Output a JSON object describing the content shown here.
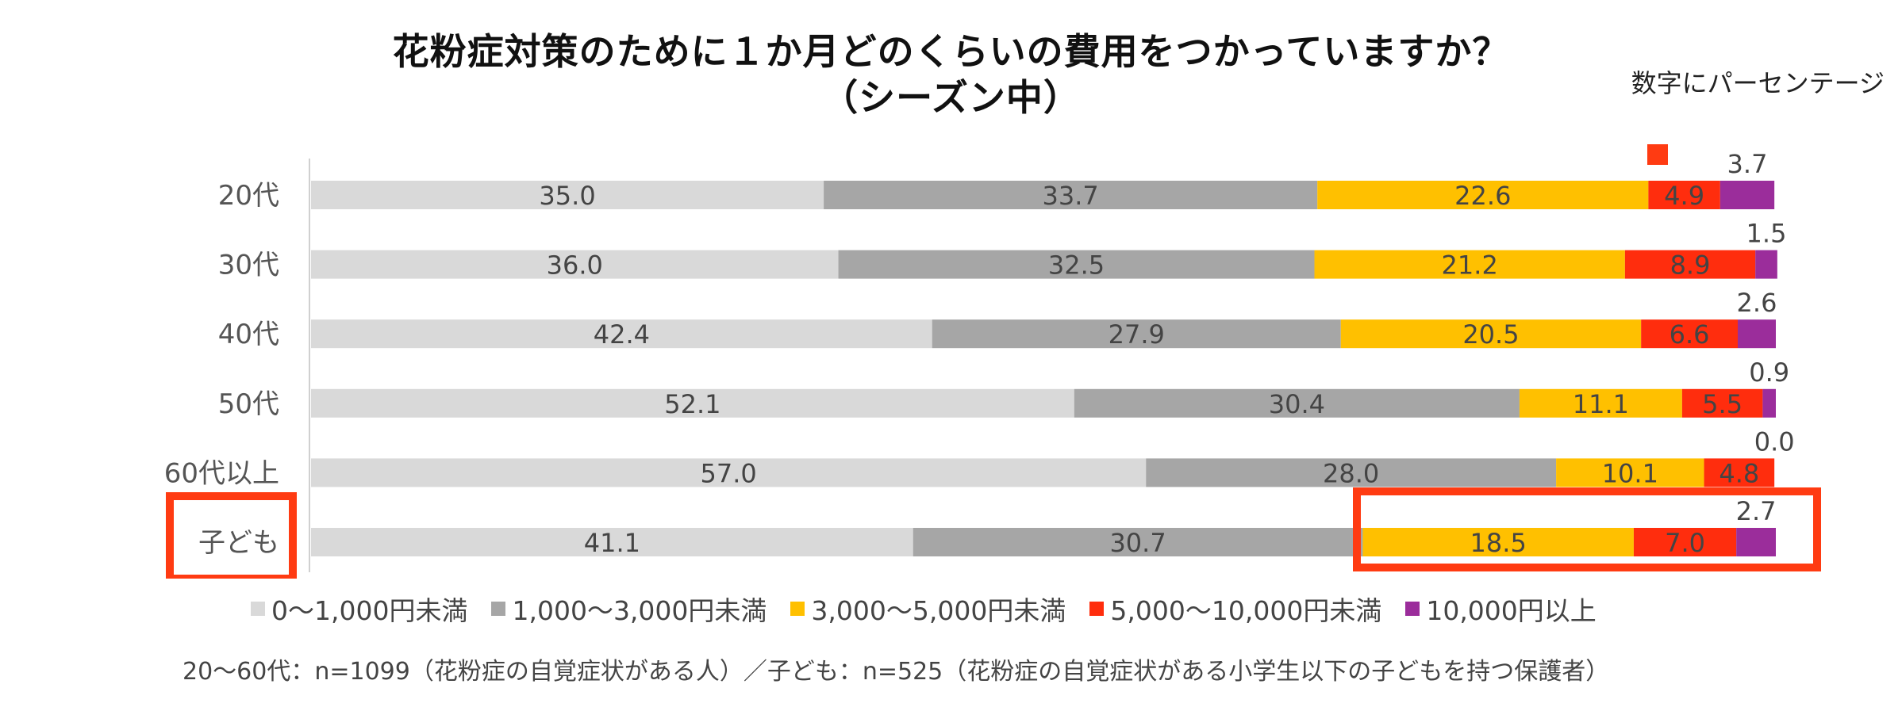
{
  "title": {
    "line1": "花粉症対策のために１か月どのくらいの費用をつかっていますか？",
    "line2": "（シーズン中）"
  },
  "unit_note": "数字にパーセンテージ",
  "footnote": "20～60代：n=1099（花粉症の自覚症状がある人）／子ども：n=525（花粉症の自覚症状がある小学生以下の子どもを持つ保護者）",
  "colors": {
    "cat0": "#d9d9d9",
    "cat1": "#a6a6a6",
    "cat2": "#ffc000",
    "cat3": "#ff2d0d",
    "cat4": "#9b2d9b",
    "highlight": "#ff3b12"
  },
  "chart_data": {
    "type": "bar",
    "orientation": "horizontal",
    "stacked": true,
    "percent_total": 100,
    "categories": [
      "20代",
      "30代",
      "40代",
      "50代",
      "60代以上",
      "子ども"
    ],
    "series": [
      {
        "name": "0～1,000円未満",
        "values": [
          35.0,
          36.0,
          42.4,
          52.1,
          57.0,
          41.1
        ]
      },
      {
        "name": "1,000～3,000円未満",
        "values": [
          33.7,
          32.5,
          27.9,
          30.4,
          28.0,
          30.7
        ]
      },
      {
        "name": "3,000～5,000円未満",
        "values": [
          22.6,
          21.2,
          20.5,
          11.1,
          10.1,
          18.5
        ]
      },
      {
        "name": "5,000～10,000円未満",
        "values": [
          4.9,
          8.9,
          6.6,
          5.5,
          4.8,
          7.0
        ]
      },
      {
        "name": "10,000円以上",
        "values": [
          3.7,
          1.5,
          2.6,
          0.9,
          0.0,
          2.7
        ]
      }
    ],
    "legend_position": "bottom",
    "highlight": {
      "category": "子ども",
      "series_from": "3,000～5,000円未満",
      "series_to": "10,000円以上"
    }
  }
}
